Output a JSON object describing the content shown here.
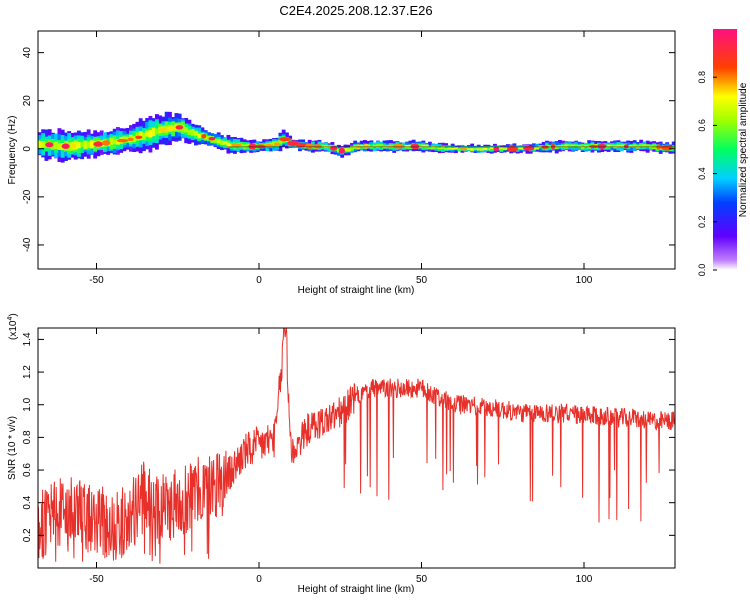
{
  "title": "C2E4.2025.208.12.37.E26",
  "colors": {
    "line": "#e8302a",
    "frame": "#000000"
  },
  "colorbar": {
    "label": "Normalized spectral amplitude",
    "ticks": [
      "0.0",
      "0.2",
      "0.4",
      "0.6",
      "0.8"
    ],
    "tick_values": [
      0.0,
      0.2,
      0.4,
      0.6,
      0.8
    ],
    "range": [
      0,
      1
    ],
    "colormap": "hsv-like: white/purple(0) → blue → cyan → green → yellow → red → magenta(1)"
  },
  "chart_data": [
    {
      "type": "heatmap",
      "xlabel": "Height of straight line (km)",
      "ylabel": "Frequency (Hz)",
      "xlim": [
        -68,
        128
      ],
      "ylim": [
        -50,
        49
      ],
      "xticks": [
        -50,
        0,
        50,
        100
      ],
      "xtick_labels": [
        "-50",
        "0",
        "50",
        "100"
      ],
      "yticks": [
        -40,
        -20,
        0,
        20,
        40
      ],
      "ytick_labels": [
        "-40",
        "-20",
        "0",
        "20",
        "40"
      ],
      "ridge": {
        "x": [
          -68,
          -60,
          -50,
          -40,
          -35,
          -30,
          -25,
          -20,
          -15,
          -10,
          -5,
          0,
          5,
          7,
          10,
          15,
          20,
          25,
          30,
          40,
          50,
          60,
          70,
          80,
          90,
          100,
          110,
          120,
          128
        ],
        "y": [
          2,
          1,
          2,
          4,
          6,
          8,
          9,
          6,
          4,
          2,
          1,
          1,
          2,
          4,
          2,
          1,
          1,
          -1,
          1,
          1,
          1,
          0,
          0,
          0,
          1,
          1,
          1,
          1,
          0
        ],
        "width_hz": [
          5,
          6,
          5,
          5,
          6,
          6,
          5,
          4,
          3,
          3,
          3,
          2,
          3,
          3,
          2,
          2,
          2,
          2,
          2,
          2,
          2,
          1.5,
          1.5,
          1.5,
          2,
          2,
          2,
          2,
          2
        ]
      }
    },
    {
      "type": "line",
      "xlabel": "Height of straight line (km)",
      "ylabel": "SNR (10 * v/v)",
      "y_multiplier_label": "(x10",
      "y_multiplier_exp": "4",
      "y_multiplier_close": ")",
      "xlim": [
        -68,
        128
      ],
      "ylim": [
        0,
        1.47
      ],
      "xticks": [
        -50,
        0,
        50,
        100
      ],
      "xtick_labels": [
        "-50",
        "0",
        "50",
        "100"
      ],
      "yticks": [
        0.2,
        0.4,
        0.6,
        0.8,
        1.0,
        1.2,
        1.4
      ],
      "ytick_labels": [
        "0.2",
        "0.4",
        "0.6",
        "0.8",
        "1.0",
        "1.2",
        "1.4"
      ],
      "series": [
        {
          "name": "",
          "x": [
            -68,
            -60,
            -50,
            -45,
            -40,
            -35,
            -30,
            -25,
            -20,
            -15,
            -10,
            -8,
            -5,
            0,
            5,
            8,
            10,
            15,
            20,
            25,
            30,
            35,
            40,
            45,
            50,
            55,
            60,
            65,
            70,
            75,
            80,
            85,
            90,
            95,
            100,
            105,
            110,
            115,
            120,
            125,
            128
          ],
          "y": [
            0.25,
            0.35,
            0.3,
            0.25,
            0.3,
            0.45,
            0.35,
            0.4,
            0.45,
            0.5,
            0.55,
            0.6,
            0.7,
            0.75,
            0.8,
            1.45,
            0.7,
            0.85,
            0.9,
            0.95,
            1.05,
            1.1,
            1.1,
            1.1,
            1.1,
            1.05,
            1.0,
            1.0,
            0.98,
            0.97,
            0.95,
            0.95,
            0.95,
            0.95,
            0.93,
            0.93,
            0.92,
            0.92,
            0.9,
            0.9,
            0.9
          ]
        }
      ]
    }
  ]
}
